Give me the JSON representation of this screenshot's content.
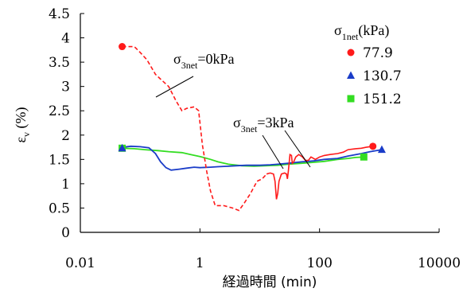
{
  "chart_data": {
    "type": "line",
    "xscale": "log",
    "xlim": [
      0.01,
      10000
    ],
    "ylim": [
      0,
      4.5
    ],
    "grid": false,
    "xticks": [
      {
        "value": 0.01,
        "label": "0.01"
      },
      {
        "value": 1,
        "label": "1"
      },
      {
        "value": 100,
        "label": "100"
      },
      {
        "value": 10000,
        "label": "10000"
      }
    ],
    "yticks": [
      {
        "value": 0,
        "label": "0"
      },
      {
        "value": 0.5,
        "label": "0.5"
      },
      {
        "value": 1,
        "label": "1"
      },
      {
        "value": 1.5,
        "label": "1.5"
      },
      {
        "value": 2,
        "label": "2"
      },
      {
        "value": 2.5,
        "label": "2.5"
      },
      {
        "value": 3,
        "label": "3"
      },
      {
        "value": 3.5,
        "label": "3.5"
      },
      {
        "value": 4,
        "label": "4"
      },
      {
        "value": 4.5,
        "label": "4.5"
      }
    ],
    "xlabel": "経過時間 (min)",
    "ylabel": {
      "main": "ε",
      "sub": "v",
      "unit": " (%)"
    },
    "legend": {
      "title": {
        "main": "σ",
        "sub": "1net",
        "unit": "(kPa)"
      },
      "placement": "top-right"
    },
    "annotations": [
      {
        "id": "a0",
        "main": "σ",
        "sub": "3net",
        "rest": "=0kPa"
      },
      {
        "id": "a3",
        "main": "σ",
        "sub": "3net",
        "rest": "=3kPa"
      }
    ],
    "series": [
      {
        "name": "77.9",
        "color": "#ff1a1a",
        "marker": "circle",
        "line": "mixed",
        "markers": [
          [
            0.05,
            3.82
          ],
          [
            780,
            1.77
          ]
        ],
        "dashed": [
          [
            0.05,
            3.82
          ],
          [
            0.08,
            3.82
          ],
          [
            0.1,
            3.7
          ],
          [
            0.13,
            3.55
          ],
          [
            0.18,
            3.25
          ],
          [
            0.22,
            3.15
          ],
          [
            0.3,
            3.0
          ],
          [
            0.4,
            2.7
          ],
          [
            0.5,
            2.5
          ],
          [
            0.6,
            2.55
          ],
          [
            0.8,
            2.58
          ],
          [
            0.95,
            2.5
          ],
          [
            1.1,
            1.8
          ],
          [
            1.3,
            1.25
          ],
          [
            1.5,
            0.85
          ],
          [
            1.8,
            0.55
          ],
          [
            2.5,
            0.55
          ],
          [
            3.5,
            0.5
          ],
          [
            4.5,
            0.45
          ],
          [
            5.5,
            0.6
          ],
          [
            7,
            0.8
          ],
          [
            9,
            1.05
          ],
          [
            11,
            1.1
          ],
          [
            13,
            1.2
          ]
        ],
        "solid": [
          [
            13,
            1.2
          ],
          [
            15,
            1.22
          ],
          [
            17,
            1.2
          ],
          [
            18,
            1.05
          ],
          [
            19,
            0.68
          ],
          [
            20,
            0.8
          ],
          [
            21,
            1.05
          ],
          [
            23,
            1.2
          ],
          [
            26,
            1.22
          ],
          [
            28,
            1.2
          ],
          [
            29,
            1.1
          ],
          [
            30,
            1.25
          ],
          [
            32,
            1.6
          ],
          [
            34,
            1.58
          ],
          [
            35,
            1.42
          ],
          [
            37,
            1.45
          ],
          [
            40,
            1.55
          ],
          [
            45,
            1.6
          ],
          [
            52,
            1.55
          ],
          [
            58,
            1.48
          ],
          [
            65,
            1.48
          ],
          [
            72,
            1.55
          ],
          [
            85,
            1.5
          ],
          [
            100,
            1.55
          ],
          [
            120,
            1.58
          ],
          [
            150,
            1.6
          ],
          [
            200,
            1.62
          ],
          [
            250,
            1.65
          ],
          [
            300,
            1.7
          ],
          [
            400,
            1.72
          ],
          [
            500,
            1.73
          ],
          [
            600,
            1.75
          ],
          [
            780,
            1.77
          ]
        ]
      },
      {
        "name": "130.7",
        "color": "#1a3cc8",
        "marker": "triangle",
        "line": "solid",
        "markers": [
          [
            0.05,
            1.73
          ],
          [
            1100,
            1.7
          ]
        ],
        "points": [
          [
            0.05,
            1.75
          ],
          [
            0.07,
            1.77
          ],
          [
            0.1,
            1.76
          ],
          [
            0.14,
            1.74
          ],
          [
            0.18,
            1.62
          ],
          [
            0.22,
            1.45
          ],
          [
            0.27,
            1.33
          ],
          [
            0.33,
            1.28
          ],
          [
            0.45,
            1.3
          ],
          [
            0.6,
            1.32
          ],
          [
            0.8,
            1.34
          ],
          [
            1,
            1.33
          ],
          [
            1.5,
            1.34
          ],
          [
            2,
            1.35
          ],
          [
            3,
            1.36
          ],
          [
            4,
            1.37
          ],
          [
            6,
            1.38
          ],
          [
            10,
            1.38
          ],
          [
            15,
            1.39
          ],
          [
            20,
            1.4
          ],
          [
            30,
            1.42
          ],
          [
            50,
            1.45
          ],
          [
            80,
            1.47
          ],
          [
            120,
            1.5
          ],
          [
            200,
            1.52
          ],
          [
            300,
            1.57
          ],
          [
            500,
            1.62
          ],
          [
            700,
            1.66
          ],
          [
            1100,
            1.7
          ]
        ]
      },
      {
        "name": "151.2",
        "color": "#33dd22",
        "marker": "square",
        "line": "solid",
        "markers": [
          [
            0.05,
            1.73
          ],
          [
            550,
            1.55
          ]
        ],
        "points": [
          [
            0.05,
            1.73
          ],
          [
            0.08,
            1.72
          ],
          [
            0.12,
            1.7
          ],
          [
            0.2,
            1.68
          ],
          [
            0.3,
            1.66
          ],
          [
            0.5,
            1.64
          ],
          [
            0.7,
            1.6
          ],
          [
            1,
            1.56
          ],
          [
            1.5,
            1.5
          ],
          [
            2,
            1.45
          ],
          [
            3,
            1.4
          ],
          [
            5,
            1.37
          ],
          [
            8,
            1.36
          ],
          [
            12,
            1.37
          ],
          [
            20,
            1.38
          ],
          [
            30,
            1.4
          ],
          [
            50,
            1.42
          ],
          [
            80,
            1.44
          ],
          [
            120,
            1.46
          ],
          [
            200,
            1.5
          ],
          [
            300,
            1.52
          ],
          [
            400,
            1.54
          ],
          [
            550,
            1.55
          ]
        ]
      }
    ]
  }
}
